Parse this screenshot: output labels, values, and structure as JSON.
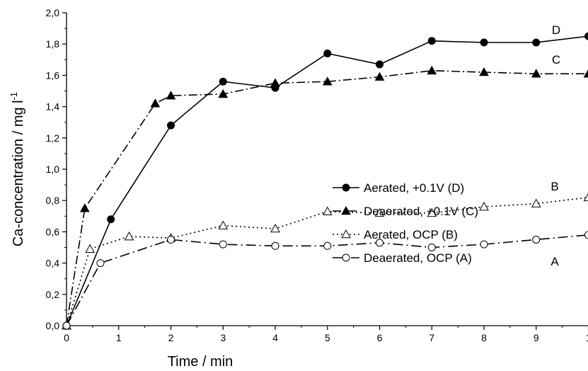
{
  "chart_data": {
    "type": "line",
    "xlabel": "Time / min",
    "ylabel": "Ca-concentration / mg l",
    "ylabel_superscript": "-1",
    "xlim": [
      0,
      10
    ],
    "ylim": [
      0,
      2.0
    ],
    "x_ticks": [
      "0",
      "1",
      "2",
      "3",
      "4",
      "5",
      "6",
      "7",
      "8",
      "9",
      "1"
    ],
    "y_ticks": [
      "0,0",
      "0,2",
      "0,4",
      "0,6",
      "0,8",
      "1,0",
      "1,2",
      "1,4",
      "1,6",
      "1,8",
      "2,0"
    ],
    "grid": false,
    "legend_position": "center-right",
    "series": [
      {
        "name": "Aerated, +0.1V (D)",
        "curve_label": "D",
        "marker": "circle-filled",
        "dash": "solid",
        "x": [
          0,
          0.85,
          2,
          3,
          4,
          5,
          6,
          7,
          8,
          9,
          10
        ],
        "y": [
          0.0,
          0.68,
          1.28,
          1.56,
          1.52,
          1.74,
          1.67,
          1.82,
          1.81,
          1.81,
          1.85
        ]
      },
      {
        "name": "Deaerated, +0.1V (C)",
        "curve_label": "C",
        "marker": "triangle-filled",
        "dash": "dashdot",
        "x": [
          0,
          0.35,
          1.7,
          2,
          3,
          4,
          5,
          6,
          7,
          8,
          9,
          10
        ],
        "y": [
          0.0,
          0.75,
          1.42,
          1.47,
          1.48,
          1.55,
          1.56,
          1.59,
          1.63,
          1.62,
          1.61,
          1.61
        ]
      },
      {
        "name": "Aerated, OCP (B)",
        "curve_label": "B",
        "marker": "triangle-open",
        "dash": "dotted",
        "x": [
          0,
          0.45,
          1.2,
          2,
          3,
          4,
          5,
          6,
          7,
          8,
          9,
          10
        ],
        "y": [
          0.0,
          0.49,
          0.57,
          0.56,
          0.64,
          0.62,
          0.73,
          0.72,
          0.72,
          0.76,
          0.78,
          0.82
        ]
      },
      {
        "name": "Deaerated, OCP (A)",
        "curve_label": "A",
        "marker": "circle-open",
        "dash": "longdashdot",
        "x": [
          0,
          0.65,
          2,
          3,
          4,
          5,
          6,
          7,
          8,
          9,
          10
        ],
        "y": [
          0.0,
          0.4,
          0.55,
          0.52,
          0.51,
          0.51,
          0.53,
          0.5,
          0.52,
          0.55,
          0.58
        ]
      }
    ]
  }
}
